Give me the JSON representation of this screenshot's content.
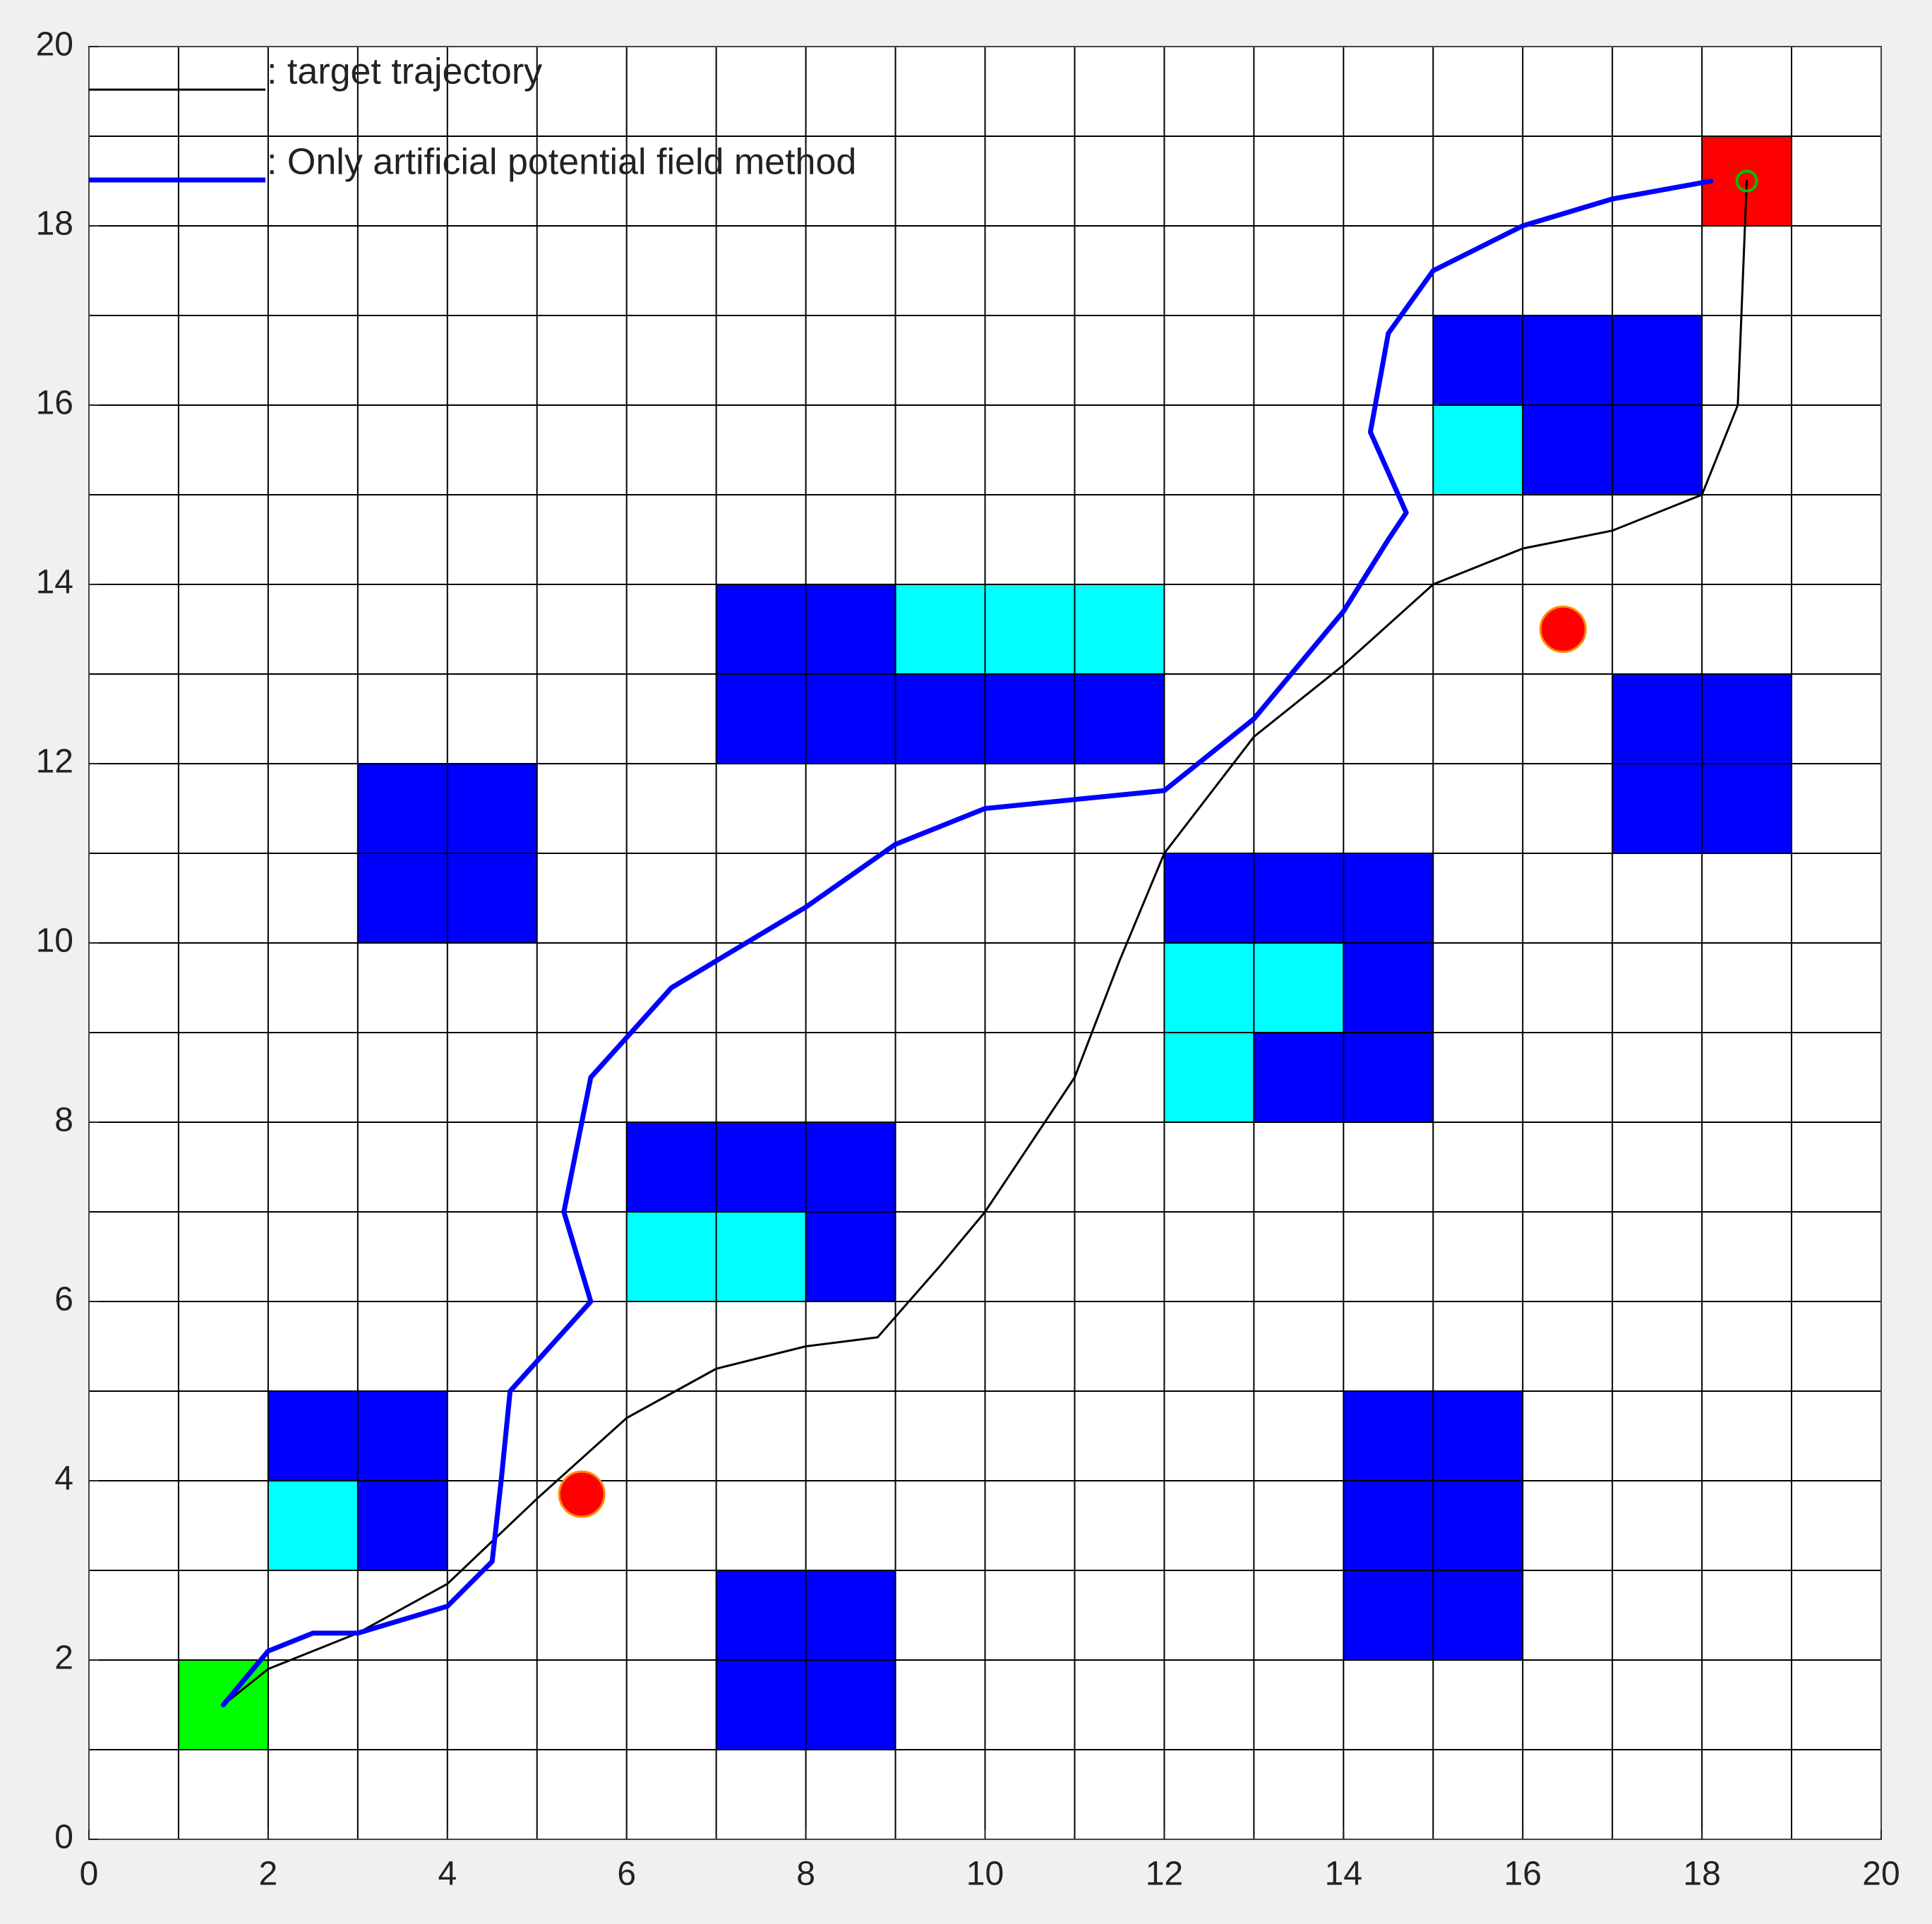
{
  "chart_data": {
    "type": "line",
    "xlim": [
      0,
      20
    ],
    "ylim": [
      0,
      20
    ],
    "xticks": [
      0,
      2,
      4,
      6,
      8,
      10,
      12,
      14,
      16,
      18,
      20
    ],
    "yticks": [
      0,
      2,
      4,
      6,
      8,
      10,
      12,
      14,
      16,
      18,
      20
    ],
    "xgrid": [
      0,
      1,
      2,
      3,
      4,
      5,
      6,
      7,
      8,
      9,
      10,
      11,
      12,
      13,
      14,
      15,
      16,
      17,
      18,
      19,
      20
    ],
    "ygrid": [
      0,
      1,
      2,
      3,
      4,
      5,
      6,
      7,
      8,
      9,
      10,
      11,
      12,
      13,
      14,
      15,
      16,
      17,
      18,
      19,
      20
    ],
    "series": [
      {
        "name": ": target trajectory",
        "color": "#000000",
        "width": 1.5,
        "x": [
          1.5,
          2,
          3,
          4,
          5,
          6,
          7,
          8,
          8.8,
          9.5,
          10,
          11,
          11.5,
          12,
          13,
          14,
          15,
          16,
          17,
          18,
          18.4,
          18.5
        ],
        "values": [
          1.5,
          1.9,
          2.3,
          2.85,
          3.8,
          4.7,
          5.25,
          5.5,
          5.6,
          6.4,
          7,
          8.5,
          9.8,
          11,
          12.3,
          13.1,
          14,
          14.4,
          14.6,
          15,
          16,
          18.5
        ]
      },
      {
        "name": ": Only artificial potential field method",
        "color": "#0000ff",
        "width": 3.5,
        "x": [
          1.5,
          2,
          2.5,
          3,
          4,
          4.5,
          4.6,
          4.7,
          5.6,
          5.3,
          5.6,
          6.5,
          8,
          9,
          10,
          11,
          12,
          13,
          14,
          14.5,
          14.7,
          14.3,
          14.5,
          15,
          16,
          17,
          18.1
        ],
        "values": [
          1.5,
          2.1,
          2.3,
          2.3,
          2.6,
          3.1,
          4,
          5,
          6,
          7,
          8.5,
          9.5,
          10.4,
          11.1,
          11.5,
          11.6,
          11.7,
          12.5,
          13.7,
          14.5,
          14.8,
          15.7,
          16.8,
          17.5,
          18,
          18.3,
          18.5
        ]
      }
    ],
    "cells": [
      {
        "color": "#0000ff",
        "x": [
          15,
          16,
          17,
          16,
          17,
          7,
          8,
          7,
          8,
          9,
          10,
          11,
          17,
          18,
          17,
          18,
          3,
          4,
          3,
          4,
          12,
          13,
          14,
          14,
          13,
          14,
          6,
          7,
          8,
          8,
          2,
          3,
          3,
          14,
          15,
          14,
          15,
          14,
          15,
          7,
          8,
          7,
          8
        ],
        "y": [
          16,
          16,
          16,
          15,
          15,
          13,
          13,
          12,
          12,
          12,
          12,
          12,
          12,
          12,
          11,
          11,
          11,
          11,
          10,
          10,
          10,
          10,
          10,
          9,
          8,
          8,
          7,
          7,
          7,
          6,
          4,
          4,
          3,
          4,
          4,
          3,
          3,
          2,
          2,
          2,
          2,
          1,
          1
        ]
      },
      {
        "color": "#00ffff",
        "x": [
          15,
          9,
          10,
          11,
          12,
          13,
          12,
          6,
          7,
          2
        ],
        "y": [
          15,
          13,
          13,
          13,
          9,
          9,
          8,
          6,
          6,
          3
        ]
      },
      {
        "color": "#00ff00",
        "x": [
          1
        ],
        "y": [
          1
        ]
      },
      {
        "color": "#ff0000",
        "x": [
          18
        ],
        "y": [
          18
        ]
      }
    ],
    "points": {
      "color": "#ff0000",
      "x": [
        5.5,
        16.45
      ],
      "y": [
        3.85,
        13.5
      ]
    },
    "goal_marker": {
      "color": "#00c000",
      "x": [
        18.5
      ],
      "y": [
        18.5
      ]
    }
  }
}
